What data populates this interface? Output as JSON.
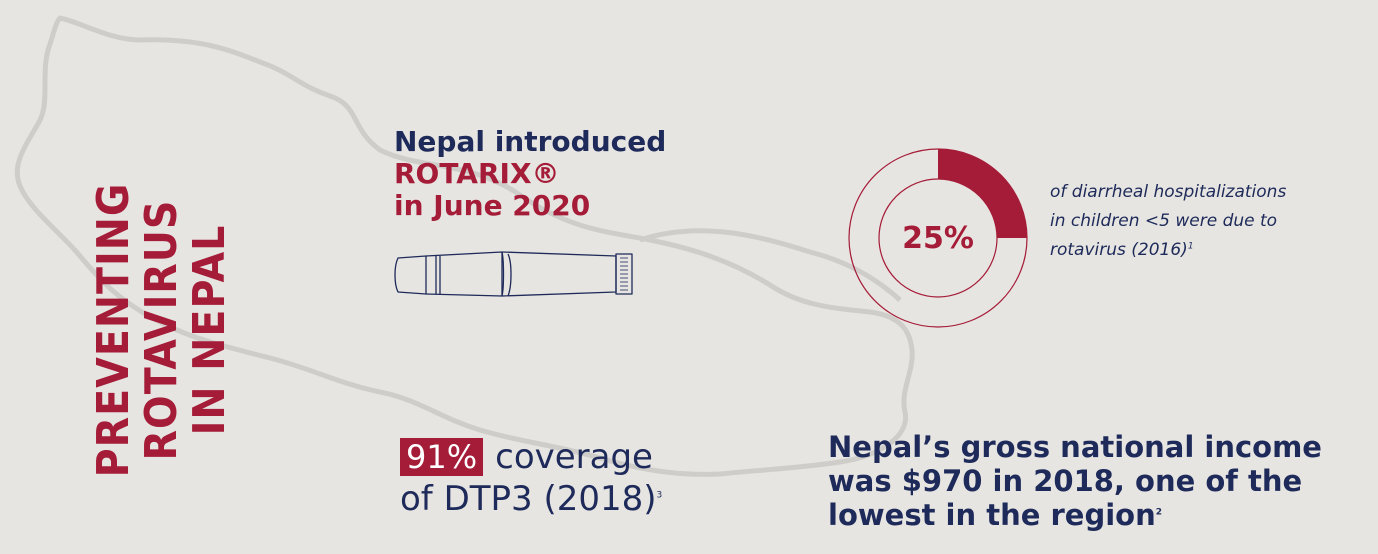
{
  "colors": {
    "background": "#e7e5e1",
    "navy": "#1d2a5a",
    "crimson": "#a51c38",
    "map_outline": "#c9c7c4"
  },
  "title": {
    "line1": "PREVENTING ROTAVIRUS",
    "line2": "IN NEPAL"
  },
  "intro": {
    "line1": "Nepal introduced",
    "line2": "ROTARIX®",
    "line3": "in June 2020"
  },
  "stat": {
    "percent_value": 25,
    "percent_label": "25%",
    "caption_line1": "of diarrheal hospitalizations",
    "caption_line2": "in children <5 were due to",
    "caption_line3": "rotavirus (2016)",
    "caption_ref": "1"
  },
  "coverage": {
    "percent_label": "91%",
    "word": "coverage",
    "line2": "of DTP3 (2018)",
    "ref": "3"
  },
  "gni": {
    "line1": "Nepal’s gross national income",
    "line2": "was $970 in 2018, one of the",
    "line3": "lowest in the region",
    "ref": "2"
  },
  "icons": {
    "vaccine": "vaccine-tube-icon",
    "map": "nepal-map-outline"
  }
}
